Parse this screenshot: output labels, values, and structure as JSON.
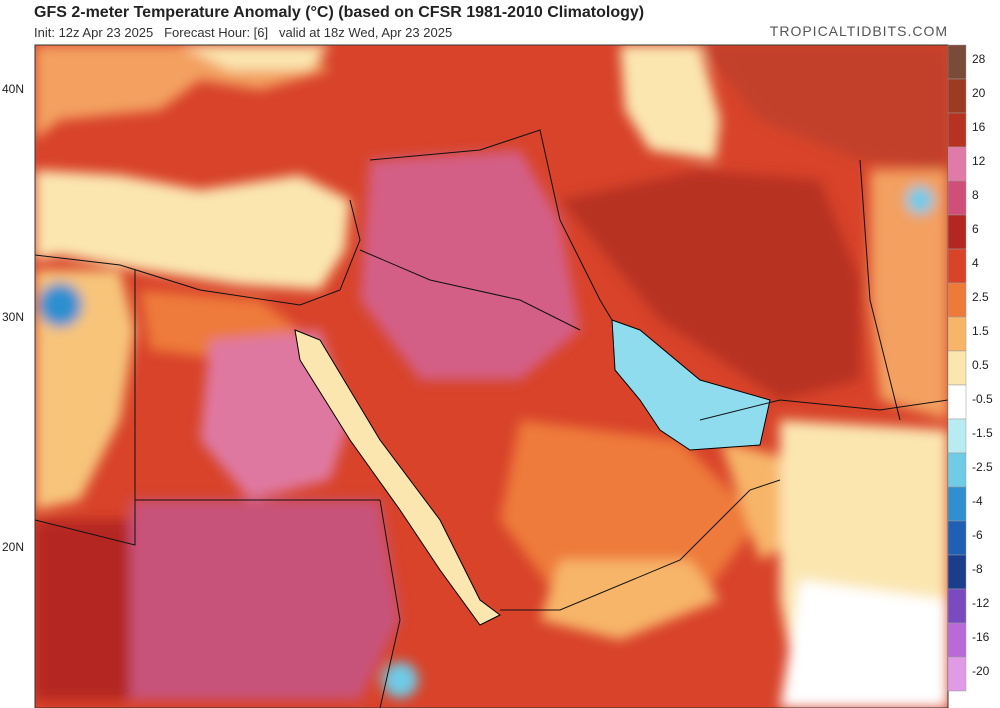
{
  "header": {
    "title": "GFS 2-meter Temperature Anomaly (°C) (based on CFSR 1981-2010 Climatology)",
    "subtitle": "Init: 12z Apr 23 2025   Forecast Hour: [6]   valid at 18z Wed, Apr 23 2025",
    "source": "TROPICALTIDBITS.COM"
  },
  "map": {
    "latitude_labels": [
      "40N",
      "30N",
      "20N"
    ]
  },
  "colorbar": [
    {
      "label": "28",
      "color": "#7b4b3a"
    },
    {
      "label": "20",
      "color": "#9c3a22"
    },
    {
      "label": "16",
      "color": "#b83222"
    },
    {
      "label": "12",
      "color": "#e07aa8"
    },
    {
      "label": "8",
      "color": "#cf4f78"
    },
    {
      "label": "6",
      "color": "#b42620"
    },
    {
      "label": "4",
      "color": "#d8432a"
    },
    {
      "label": "2.5",
      "color": "#ee7a3a"
    },
    {
      "label": "1.5",
      "color": "#f7b569"
    },
    {
      "label": "0.5",
      "color": "#fbe6b0"
    },
    {
      "label": "-0.5",
      "color": "#ffffff"
    },
    {
      "label": "-1.5",
      "color": "#b8ecf2"
    },
    {
      "label": "-2.5",
      "color": "#6fcbe6"
    },
    {
      "label": "-4",
      "color": "#2f8fd0"
    },
    {
      "label": "-6",
      "color": "#1f5fb4"
    },
    {
      "label": "-8",
      "color": "#1c3c8c"
    },
    {
      "label": "-12",
      "color": "#7a4bc0"
    },
    {
      "label": "-16",
      "color": "#b76ad8"
    },
    {
      "label": "-20",
      "color": "#e19ae6"
    }
  ]
}
